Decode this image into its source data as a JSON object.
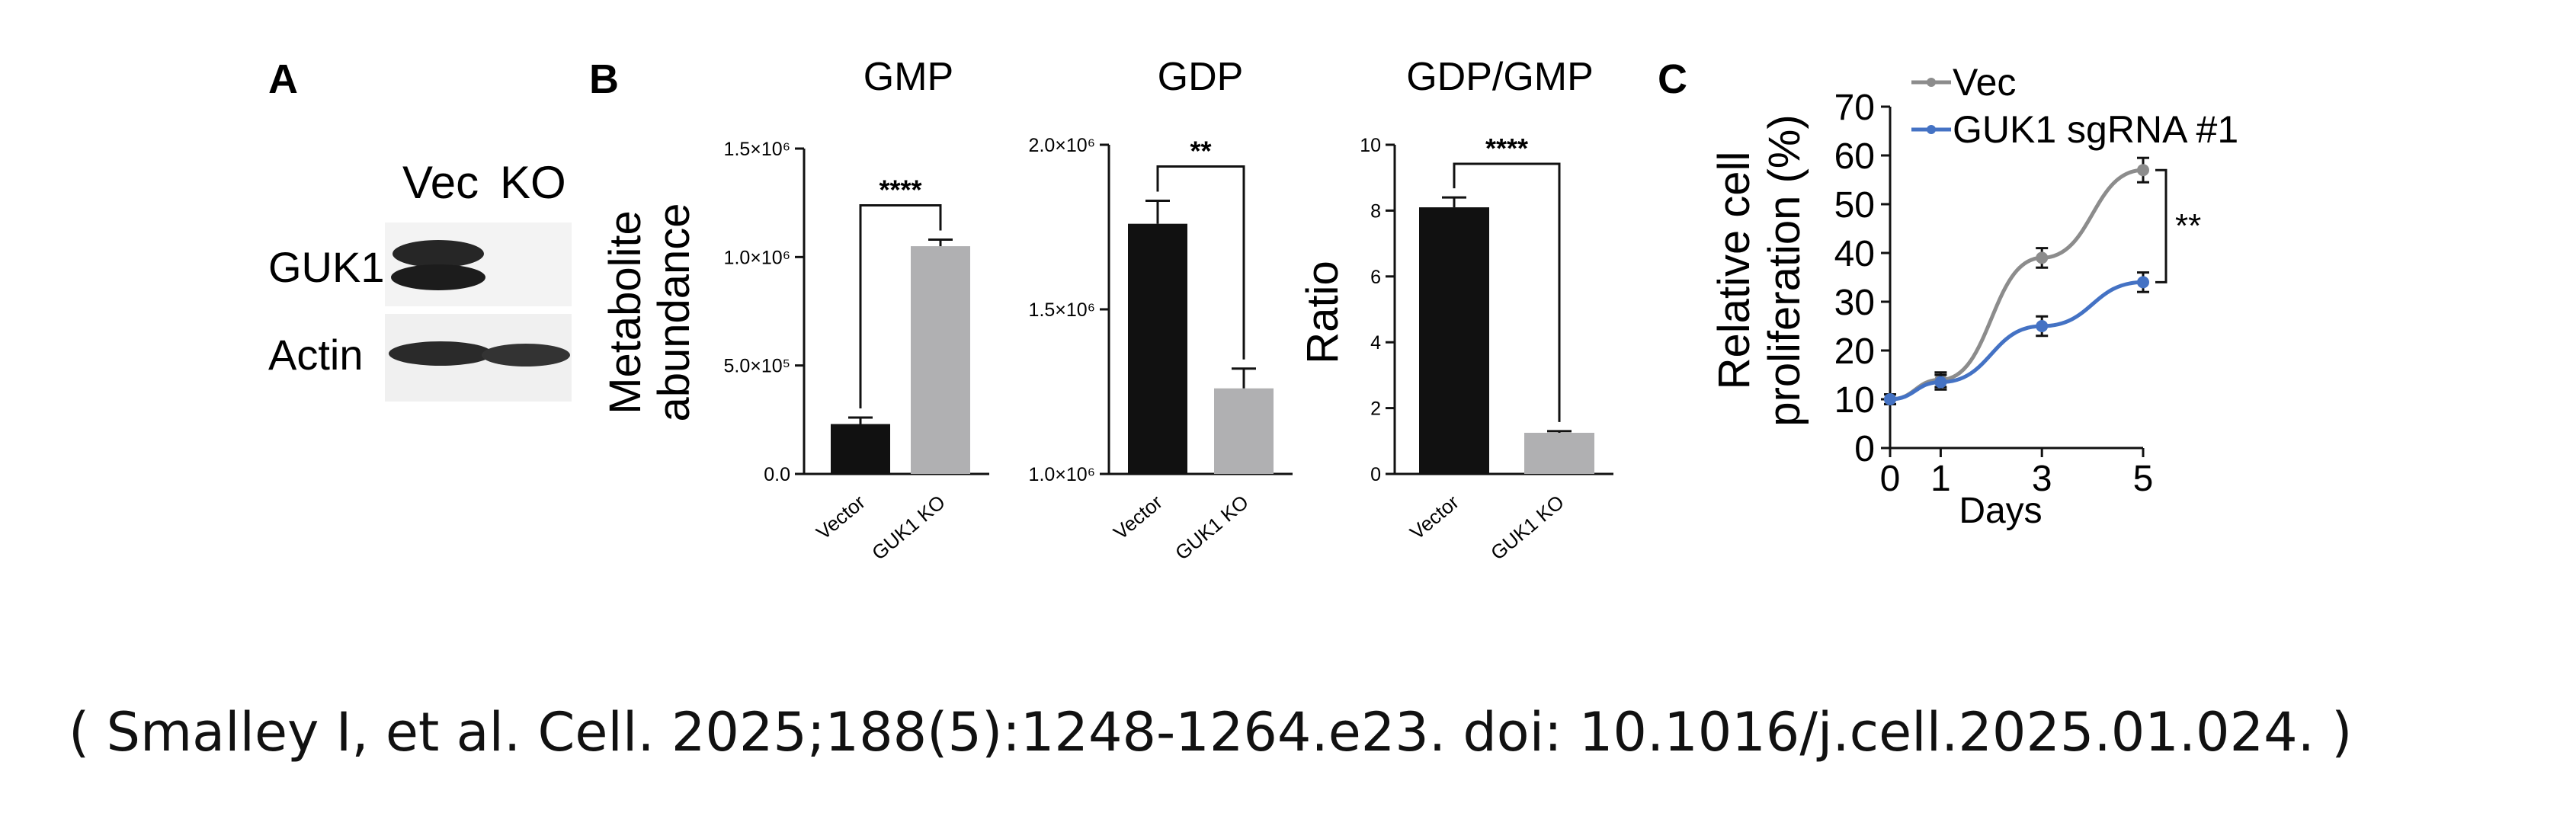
{
  "panels": {
    "a": {
      "letter": "A",
      "lanes": [
        "Vec",
        "KO"
      ],
      "rows": [
        "GUK1",
        "Actin"
      ]
    },
    "b": {
      "letter": "B"
    },
    "c": {
      "letter": "C"
    }
  },
  "citation": "( Smalley I, et al. Cell. 2025;188(5):1248-1264.e23. doi: 10.1016/j.cell.2025.01.024. )",
  "colors": {
    "vector_bar": "#111111",
    "ko_bar": "#b0b0b2",
    "vec_line": "#8c8c8c",
    "guk1_line": "#4472c4"
  },
  "chart_data": [
    {
      "type": "bar",
      "title": "GMP",
      "ylabel": "Metabolite abundance",
      "categories": [
        "Vector",
        "GUK1 KO"
      ],
      "values": [
        230000,
        1050000
      ],
      "errors": [
        30000,
        30000
      ],
      "ylim": [
        0,
        1500000
      ],
      "yticks": [
        0,
        500000,
        1000000,
        1500000
      ],
      "ytick_labels": [
        "0.0",
        "5.0×10⁵",
        "1.0×10⁶",
        "1.5×10⁶"
      ],
      "significance": "****"
    },
    {
      "type": "bar",
      "title": "GDP",
      "ylabel": "",
      "categories": [
        "Vector",
        "GUK1 KO"
      ],
      "values": [
        1760000,
        1260000
      ],
      "errors": [
        70000,
        60000
      ],
      "ylim": [
        1000000,
        2000000
      ],
      "yticks": [
        1000000,
        1500000,
        2000000
      ],
      "ytick_labels": [
        "1.0×10⁶",
        "1.5×10⁶",
        "2.0×10⁶"
      ],
      "significance": "**"
    },
    {
      "type": "bar",
      "title": "GDP/GMP",
      "ylabel": "Ratio",
      "categories": [
        "Vector",
        "GUK1 KO"
      ],
      "values": [
        8.1,
        1.25
      ],
      "errors": [
        0.3,
        0.05
      ],
      "ylim": [
        0,
        10
      ],
      "yticks": [
        0,
        2,
        4,
        6,
        8,
        10
      ],
      "ytick_labels": [
        "0",
        "2",
        "4",
        "6",
        "8",
        "10"
      ],
      "significance": "****"
    },
    {
      "type": "line",
      "title": "",
      "xlabel": "Days",
      "ylabel": "Relative cell proliferation (%)",
      "x": [
        0,
        1,
        3,
        5
      ],
      "xlim": [
        0,
        5
      ],
      "ylim": [
        0,
        70
      ],
      "yticks": [
        0,
        10,
        20,
        30,
        40,
        50,
        60,
        70
      ],
      "legend": "top-left",
      "series": [
        {
          "name": "Vec",
          "values": [
            10,
            14,
            39,
            57
          ],
          "errors": [
            1,
            1.5,
            2,
            2.5
          ]
        },
        {
          "name": "GUK1 sgRNA #1",
          "values": [
            10,
            13.5,
            25,
            34
          ],
          "errors": [
            1,
            1.5,
            2,
            2
          ]
        }
      ],
      "significance": "**"
    }
  ]
}
